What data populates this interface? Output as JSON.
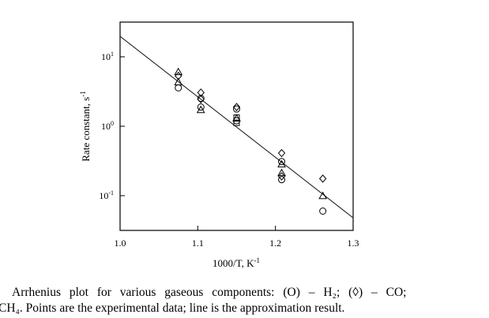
{
  "chart_data": {
    "type": "scatter",
    "title": "",
    "xlabel": "1000/T, K",
    "xlabel_sup": "-1",
    "ylabel": "Rate constant, s",
    "ylabel_sup": "-1",
    "xlim": [
      1.0,
      1.3
    ],
    "ylim": [
      0.0316,
      31.6
    ],
    "y_scale": "log",
    "grid": false,
    "x_ticks": [
      "1.0",
      "1.1",
      "1.2",
      "1.3"
    ],
    "x_tick_values": [
      1.0,
      1.1,
      1.2,
      1.3
    ],
    "y_ticks": [
      {
        "base": "10",
        "exp": "1",
        "value": 10
      },
      {
        "base": "10",
        "exp": "0",
        "value": 1
      },
      {
        "base": "10",
        "exp": "-1",
        "value": 0.1
      }
    ],
    "series": [
      {
        "marker": "circle",
        "name": "H₂",
        "points": [
          [
            1.075,
            3.57
          ],
          [
            1.104,
            2.52
          ],
          [
            1.104,
            1.89
          ],
          [
            1.15,
            1.77
          ],
          [
            1.15,
            1.2
          ],
          [
            1.208,
            0.31
          ],
          [
            1.208,
            0.17
          ],
          [
            1.261,
            0.06
          ]
        ]
      },
      {
        "marker": "diamond",
        "name": "CO",
        "points": [
          [
            1.075,
            5.3
          ],
          [
            1.104,
            3.05
          ],
          [
            1.104,
            2.45
          ],
          [
            1.15,
            1.89
          ],
          [
            1.208,
            0.41
          ],
          [
            1.208,
            0.19
          ],
          [
            1.261,
            0.176
          ]
        ]
      },
      {
        "marker": "triangle",
        "points": [
          [
            1.075,
            5.97
          ],
          [
            1.075,
            4.26
          ],
          [
            1.104,
            1.7
          ],
          [
            1.15,
            1.28
          ],
          [
            1.208,
            0.28
          ],
          [
            1.208,
            0.21
          ],
          [
            1.261,
            0.098
          ]
        ]
      },
      {
        "marker": "square",
        "points": [
          [
            1.15,
            1.33
          ],
          [
            1.15,
            1.12
          ]
        ]
      }
    ],
    "fit_line": {
      "points": [
        [
          1.0,
          19.7
        ],
        [
          1.3,
          0.048
        ]
      ]
    }
  },
  "caption": {
    "line1": "Arrhenius plot for various gaseous components: (O) – H₂; (◊) – CO;",
    "line2": "CH₄. Points are the experimental data; line is the approximation result."
  }
}
